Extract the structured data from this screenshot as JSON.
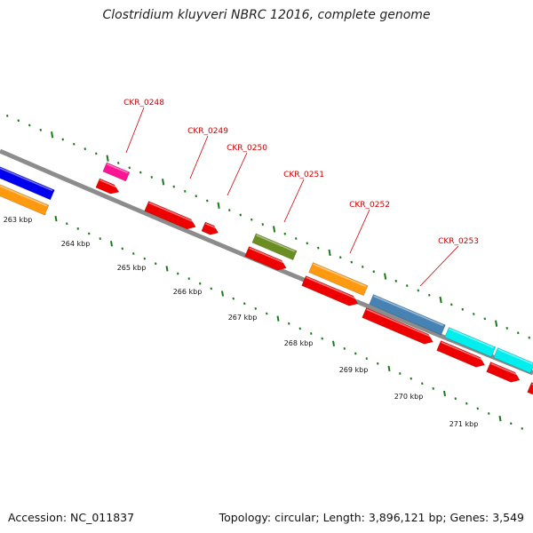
{
  "title": "Clostridium kluyveri NBRC 12016, complete genome",
  "footer": {
    "accession": "Accession: NC_011837",
    "summary": "Topology: circular; Length: 3,896,121 bp; Genes: 3,549"
  },
  "scale_labels": [
    "263 kbp",
    "264 kbp",
    "265 kbp",
    "266 kbp",
    "267 kbp",
    "268 kbp",
    "269 kbp",
    "270 kbp",
    "271 kbp"
  ],
  "gene_labels": [
    "CKR_0248",
    "CKR_0249",
    "CKR_0250",
    "CKR_0251",
    "CKR_0252",
    "CKR_0253"
  ],
  "colors": {
    "backbone": "#8c8c8c",
    "ticks": "#1a7a1a",
    "label": "#cc0000",
    "red": "#ee0000",
    "blue": "#0000ee",
    "orange": "#ff9910",
    "pink": "#ff1493",
    "olive": "#6b8e23",
    "steelblue": "#4682b4",
    "cyan": "#00eeee"
  }
}
